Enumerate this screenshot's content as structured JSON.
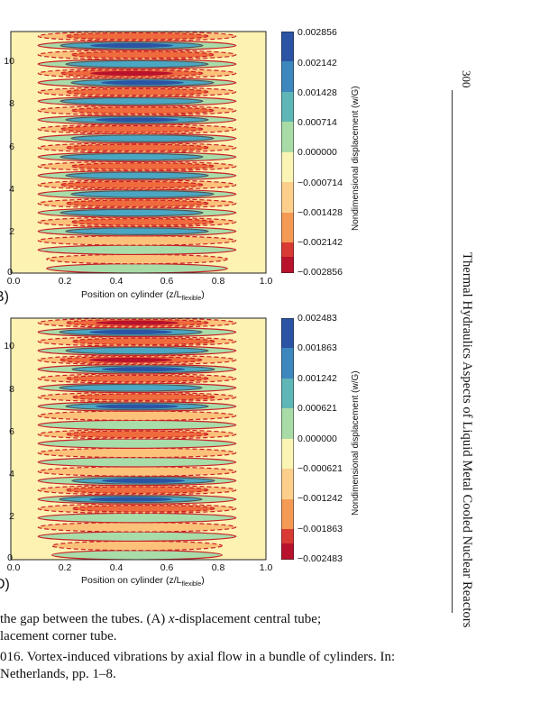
{
  "page": {
    "page_number": "300",
    "running_title": "Thermal Hydraulics Aspects of Liquid Metal Cooled Nuclear Reactors"
  },
  "figures": [
    {
      "panel_label": "B)",
      "xlabel_text": "Position on cylinder (z/L",
      "xlabel_sub": "flexible",
      "xlabel_tail": ")",
      "cbar_label": "Nondimensional   displacement (w/G)",
      "cbar_ticks": [
        "0.002856",
        "0.002142",
        "0.001428",
        "0.000714",
        "0.000000",
        "−0.000714",
        "−0.001428",
        "−0.002142",
        "−0.002856"
      ],
      "yticks": [
        "0",
        "2",
        "4",
        "6",
        "8",
        "10"
      ],
      "xticks": [
        "0.0",
        "0.2",
        "0.4",
        "0.6",
        "0.8",
        "1.0"
      ]
    },
    {
      "panel_label": "D)",
      "xlabel_text": "Position on cylinder (z/L",
      "xlabel_sub": "flexible",
      "xlabel_tail": ")",
      "cbar_label": "Nondimensional   displacement (w/G)",
      "cbar_ticks": [
        "0.002483",
        "0.001863",
        "0.001242",
        "0.000621",
        "0.000000",
        "−0.000621",
        "−0.001242",
        "−0.001863",
        "−0.002483"
      ],
      "yticks": [
        "0",
        "2",
        "4",
        "6",
        "8",
        "10"
      ],
      "xticks": [
        "0.0",
        "0.2",
        "0.4",
        "0.6",
        "0.8",
        "1.0"
      ]
    }
  ],
  "caption": {
    "line1_pre": "the gap between the tubes. (A) ",
    "line1_var": "x",
    "line1_post": "-displacement central tube;",
    "line2": "lacement corner tube.",
    "line3": "016. Vortex-induced vibrations by axial flow in a bundle of cylinders. In:",
    "line4": " Netherlands, pp. 1–8."
  },
  "colors": {
    "positive_strong": "#2b54a4",
    "positive_mid": "#4aa7c4",
    "positive_light": "#a8dca8",
    "neutral": "#fdf7b8",
    "negative_light": "#fcc27a",
    "negative_mid": "#ef6a3c",
    "negative_strong": "#b9122c",
    "contour_line": "#c8202a"
  }
}
